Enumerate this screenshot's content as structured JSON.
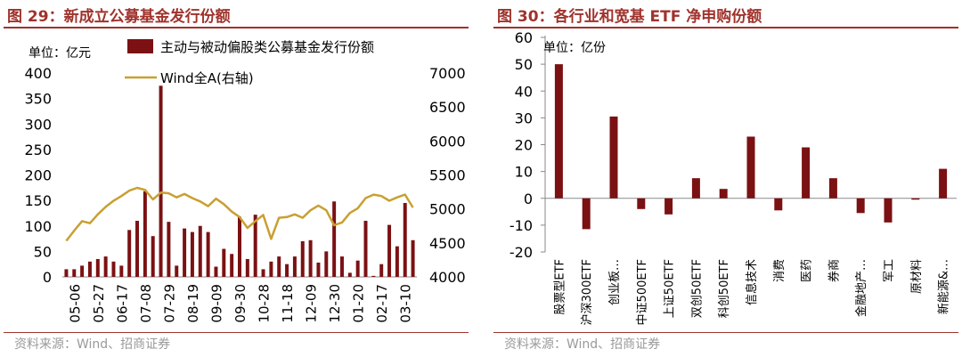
{
  "left": {
    "title": "图 29：新成立公募基金发行份额",
    "source": "资料来源：Wind、招商证券",
    "colors": {
      "bar": "#7b1113",
      "line": "#c8a032",
      "title": "#a0322c"
    },
    "chart_data": {
      "type": "bar",
      "title": "新成立公募基金发行份额",
      "unit_label": "单位：亿元",
      "tick_labels": [
        "05-06",
        "05-27",
        "06-17",
        "07-08",
        "07-29",
        "08-19",
        "09-09",
        "09-30",
        "10-28",
        "11-18",
        "12-09",
        "12-30",
        "01-20",
        "02-17",
        "03-10"
      ],
      "y_left": {
        "lim": [
          0,
          400
        ],
        "ticks": [
          0,
          50,
          100,
          150,
          200,
          250,
          300,
          350,
          400
        ]
      },
      "y_right": {
        "lim": [
          4000,
          7000
        ],
        "ticks": [
          4000,
          4500,
          5000,
          5500,
          6000,
          6500,
          7000
        ]
      },
      "series": [
        {
          "name": "主动与被动偏股类公募基金发行份额",
          "type": "bar",
          "axis": "left",
          "values": [
            15,
            15,
            22,
            30,
            35,
            40,
            30,
            22,
            92,
            110,
            168,
            80,
            375,
            108,
            22,
            95,
            88,
            100,
            88,
            20,
            55,
            45,
            118,
            35,
            122,
            15,
            30,
            40,
            25,
            40,
            70,
            72,
            28,
            50,
            148,
            40,
            8,
            32,
            110,
            2,
            25,
            102,
            60,
            145,
            72
          ]
        },
        {
          "name": "Wind全A(右轴)",
          "type": "line",
          "axis": "right",
          "values": [
            4530,
            4680,
            4820,
            4790,
            4920,
            5030,
            5120,
            5190,
            5270,
            5310,
            5280,
            5140,
            5240,
            5230,
            5170,
            5220,
            5160,
            5110,
            5040,
            5150,
            5070,
            4960,
            4880,
            4720,
            4820,
            4910,
            4560,
            4870,
            4880,
            4920,
            4870,
            4980,
            5050,
            4980,
            4760,
            4800,
            4940,
            5010,
            5160,
            5210,
            5190,
            5120,
            5170,
            5210,
            5020
          ]
        }
      ]
    }
  },
  "right": {
    "title": "图 30：各行业和宽基 ETF 净申购份额",
    "source": "资料来源：Wind、招商证券",
    "colors": {
      "bar": "#7b1113",
      "title": "#a0322c"
    },
    "chart_data": {
      "type": "bar",
      "title": "各行业和宽基 ETF 净申购份额",
      "unit_label": "单位：亿份",
      "categories": [
        "股票型ETF",
        "沪深300ETF",
        "创业板…",
        "中证500ETF",
        "上证50ETF",
        "双创50ETF",
        "科创50ETF",
        "信息技术",
        "消费",
        "医药",
        "券商",
        "金融地产…",
        "军工",
        "原材料",
        "新能源&…"
      ],
      "values": [
        50,
        -11.5,
        30.5,
        -4,
        -6,
        7.5,
        3.5,
        23,
        -4.5,
        19,
        7.5,
        -5.5,
        -9,
        -0.5,
        11
      ],
      "ylim": [
        -20,
        60
      ],
      "yticks": [
        -20,
        -10,
        0,
        10,
        20,
        30,
        40,
        50,
        60
      ]
    }
  }
}
